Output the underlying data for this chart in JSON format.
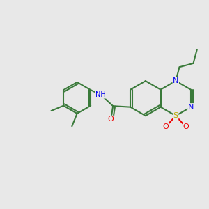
{
  "bg_color": "#e8e8e8",
  "bond_color": "#3a7a3a",
  "bond_width": 1.5,
  "atom_colors": {
    "N": "#0000ee",
    "S": "#bbaa00",
    "O": "#ee0000",
    "C": "#3a7a3a",
    "H": "#3a7a3a"
  },
  "font_size": 8,
  "figsize": [
    3.0,
    3.0
  ],
  "dpi": 100
}
